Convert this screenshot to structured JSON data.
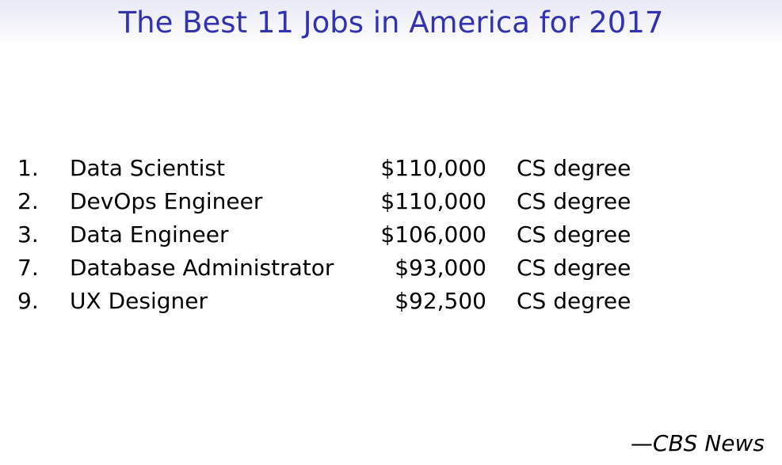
{
  "slide": {
    "title": "The Best 11 Jobs in America for 2017",
    "source": "—CBS News"
  },
  "colors": {
    "title_text": "#3333b2",
    "title_bar_top": "#e9e9f7",
    "body_text": "#000000",
    "background": "#ffffff"
  },
  "jobs": [
    {
      "rank": "1.",
      "title": "Data Scientist",
      "salary": "$110,000",
      "requirement": "CS degree"
    },
    {
      "rank": "2.",
      "title": "DevOps Engineer",
      "salary": "$110,000",
      "requirement": "CS degree"
    },
    {
      "rank": "3.",
      "title": "Data Engineer",
      "salary": "$106,000",
      "requirement": "CS degree"
    },
    {
      "rank": "7.",
      "title": "Database Administrator",
      "salary": "$93,000",
      "requirement": "CS degree"
    },
    {
      "rank": "9.",
      "title": "UX Designer",
      "salary": "$92,500",
      "requirement": "CS degree"
    }
  ]
}
